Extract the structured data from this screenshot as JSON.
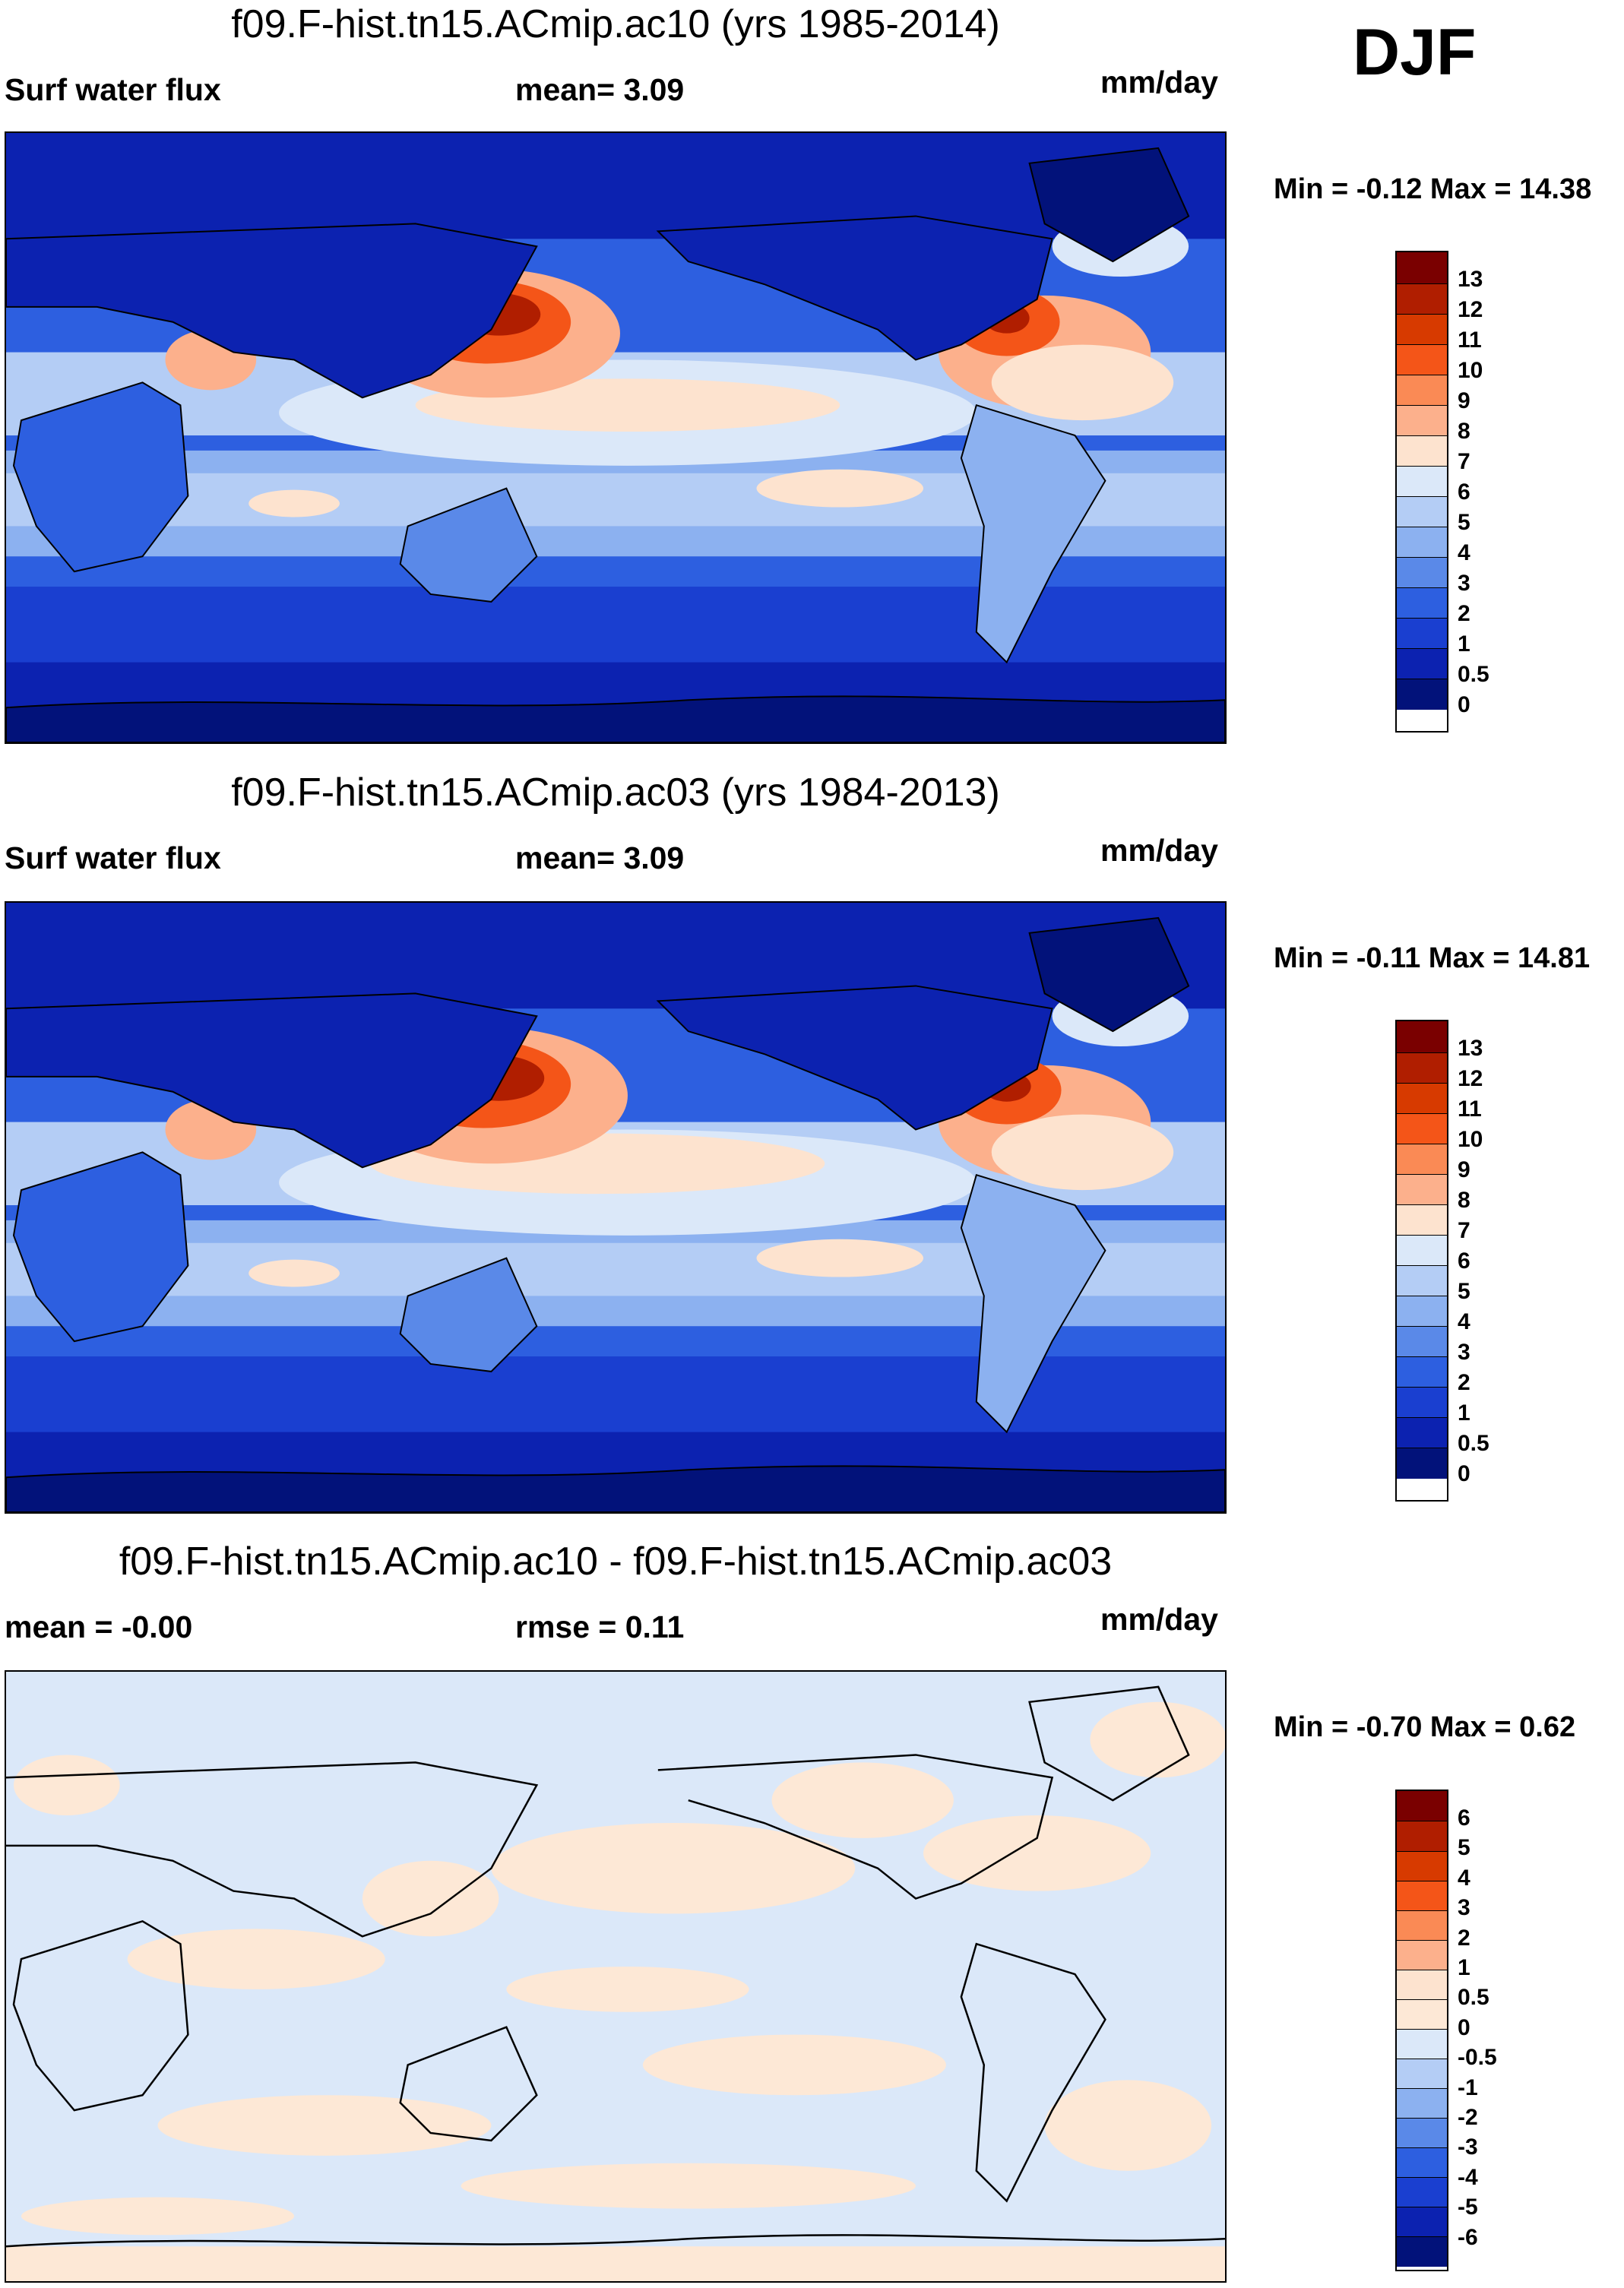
{
  "season": "DJF",
  "panels": [
    {
      "id": "top",
      "title": "f09.F-hist.tn15.ACmip.ac10 (yrs 1985-2014)",
      "left_label": "Surf water flux",
      "center_label": "mean=   3.09",
      "units": "mm/day",
      "minmax": "Min =  -0.12 Max =  14.38"
    },
    {
      "id": "middle",
      "title": "f09.F-hist.tn15.ACmip.ac03 (yrs 1984-2013)",
      "left_label": "Surf water flux",
      "center_label": "mean=   3.09",
      "units": "mm/day",
      "minmax": "Min =  -0.11 Max =  14.81"
    },
    {
      "id": "diff",
      "title": "f09.F-hist.tn15.ACmip.ac10 - f09.F-hist.tn15.ACmip.ac03",
      "left_label": "mean =  -0.00",
      "center_label": "rmse =   0.11",
      "units": "mm/day",
      "minmax": "Min =  -0.70 Max =   0.62"
    }
  ],
  "colorbars": {
    "field": {
      "colors": [
        "#7a0000",
        "#b01e00",
        "#d73a00",
        "#f45518",
        "#fa8a55",
        "#fcb08c",
        "#fde3cf",
        "#dbe8f9",
        "#b4cdf5",
        "#8cb1f0",
        "#5a89e8",
        "#2d5fe0",
        "#1a3fd0",
        "#0c22b0",
        "#02127a"
      ],
      "labels": [
        "13",
        "12",
        "11",
        "10",
        "9",
        "8",
        "7",
        "6",
        "5",
        "4",
        "3",
        "2",
        "1",
        "0.5",
        "0"
      ]
    },
    "diff": {
      "colors": [
        "#7a0000",
        "#b01e00",
        "#d73a00",
        "#f45518",
        "#fa8a55",
        "#fcb08c",
        "#fde3cf",
        "#fde8d6",
        "#dbe8f9",
        "#b4cdf5",
        "#8cb1f0",
        "#5a89e8",
        "#2d5fe0",
        "#1a3fd0",
        "#0c22b0",
        "#02127a"
      ],
      "labels": [
        "6",
        "5",
        "4",
        "3",
        "2",
        "1",
        "0.5",
        "0",
        "-0.5",
        "-1",
        "-2",
        "-3",
        "-4",
        "-5",
        "-6"
      ]
    }
  }
}
